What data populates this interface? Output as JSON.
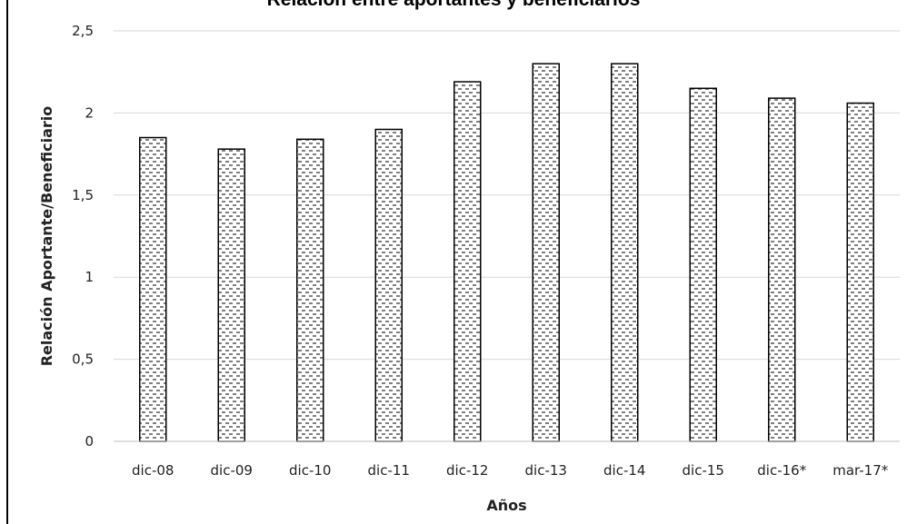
{
  "chart_data": {
    "type": "bar",
    "title": "Relación entre aportantes y  beneficiarios",
    "xlabel": "Años",
    "ylabel": "Relación Aportante/Beneficiario",
    "categories": [
      "dic-08",
      "dic-09",
      "dic-10",
      "dic-11",
      "dic-12",
      "dic-13",
      "dic-14",
      "dic-15",
      "dic-16*",
      "mar-17*"
    ],
    "values": [
      1.85,
      1.78,
      1.84,
      1.9,
      2.19,
      2.3,
      2.3,
      2.15,
      2.09,
      2.06
    ],
    "ylim": [
      0,
      2.5
    ],
    "yticks": [
      "0",
      "0,5",
      "1",
      "1,5",
      "2",
      "2,5"
    ],
    "grid": true,
    "legend": "none",
    "colors": {
      "bar_fill": "#ffffff",
      "bar_pattern": "#000000",
      "grid": "#d9d9d9"
    }
  }
}
